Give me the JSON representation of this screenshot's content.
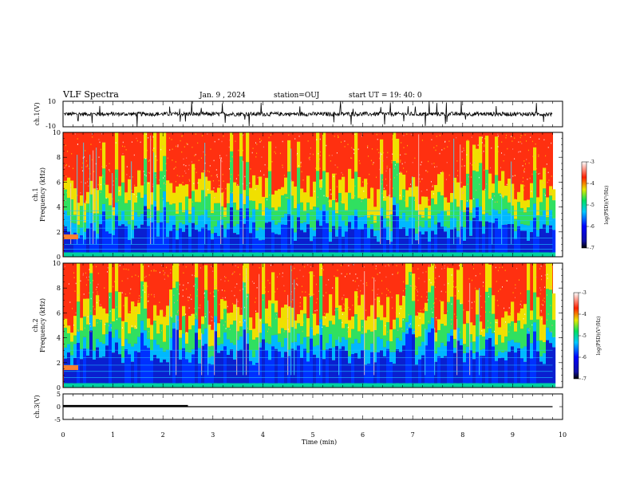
{
  "header": {
    "title": "VLF Spectra",
    "date": "Jan. 9 , 2024",
    "station": "station=OUJ",
    "start": "start UT =  19: 40: 0"
  },
  "chart_data": [
    {
      "type": "line",
      "name": "ch1-waveform",
      "ylabel": "ch.1(V)",
      "ylim": [
        -10,
        10
      ],
      "yticks": [
        "10",
        "-10"
      ],
      "xlim": [
        0,
        10
      ]
    },
    {
      "type": "heatmap",
      "name": "ch1-spectrogram",
      "ylabel_line1": "ch.1",
      "ylabel_line2": "Frequency (kHz)",
      "ylim": [
        0,
        10
      ],
      "yticks": [
        "0",
        "2",
        "4",
        "6",
        "8",
        "10"
      ],
      "xlim": [
        0,
        10
      ],
      "colorbar": {
        "label": "log(PSD)(V²/Hz)",
        "range": [
          -7,
          -3
        ],
        "ticks": [
          "-3",
          "-4",
          "-5",
          "-6",
          "-7"
        ]
      }
    },
    {
      "type": "heatmap",
      "name": "ch2-spectrogram",
      "ylabel_line1": "ch.2",
      "ylabel_line2": "Frequency (kHz)",
      "ylim": [
        0,
        10
      ],
      "yticks": [
        "0",
        "2",
        "4",
        "6",
        "8",
        "10"
      ],
      "xlim": [
        0,
        10
      ],
      "colorbar": {
        "label": "log(PSD)(V²/Hz)",
        "range": [
          -7,
          -3
        ],
        "ticks": [
          "-3",
          "-4",
          "-5",
          "-6",
          "-7"
        ]
      }
    },
    {
      "type": "line",
      "name": "ch3-trace",
      "ylabel": "ch.3(V)",
      "ylim": [
        -5,
        5
      ],
      "yticks": [
        "5",
        "0",
        "-5"
      ],
      "xlim": [
        0,
        10
      ],
      "series": [
        {
          "x": [
            0,
            2.5
          ],
          "y": [
            0.3,
            0.3
          ]
        },
        {
          "x": [
            0,
            9.8
          ],
          "y": [
            0,
            0
          ]
        }
      ]
    }
  ],
  "xaxis": {
    "label": "Time (min)",
    "ticks": [
      "0",
      "1",
      "2",
      "3",
      "4",
      "5",
      "6",
      "7",
      "8",
      "9",
      "10"
    ]
  },
  "colors": {
    "background": "#ffffff",
    "ink": "#000000"
  }
}
